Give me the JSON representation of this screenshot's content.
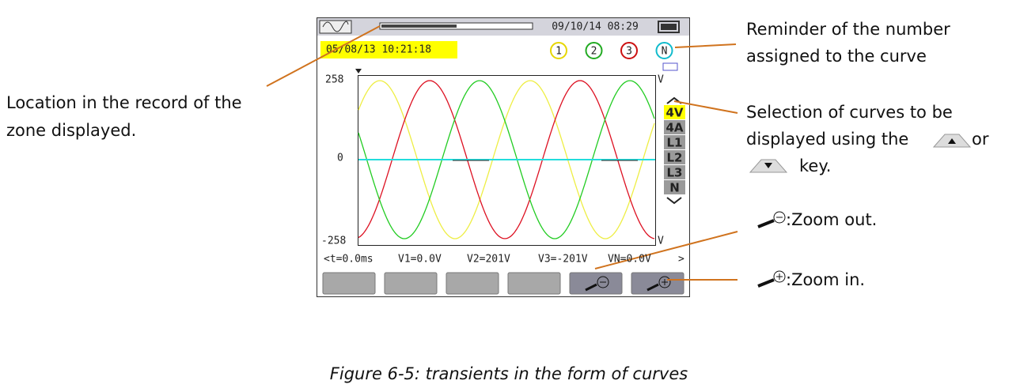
{
  "screen": {
    "date_time": "09/10/14 08:29",
    "record_start": "05/08/13 10:21:18",
    "curve_numbers": [
      "1",
      "2",
      "3",
      "N"
    ],
    "y_labels": [
      "258",
      "0",
      "-258"
    ],
    "unit": "V",
    "curve_selection": [
      "4V",
      "4A",
      "L1",
      "L2",
      "L3",
      "N"
    ],
    "cursor_readings": [
      "<t=0.0ms",
      "V1=0.0V",
      "V2=201V",
      "V3=-201V",
      "VN=0.0V",
      ">"
    ]
  },
  "annotations": {
    "record_location": [
      "Location in the record of the",
      "zone displayed."
    ],
    "curve_number": [
      "Reminder of the number",
      "assigned to the curve"
    ],
    "selection": [
      "Selection of curves to be",
      "displayed using the",
      "or",
      "key."
    ],
    "zoom_out": ":Zoom out.",
    "zoom_in": ":Zoom in."
  },
  "caption": "Figure 6-5: transients in the form of curves"
}
